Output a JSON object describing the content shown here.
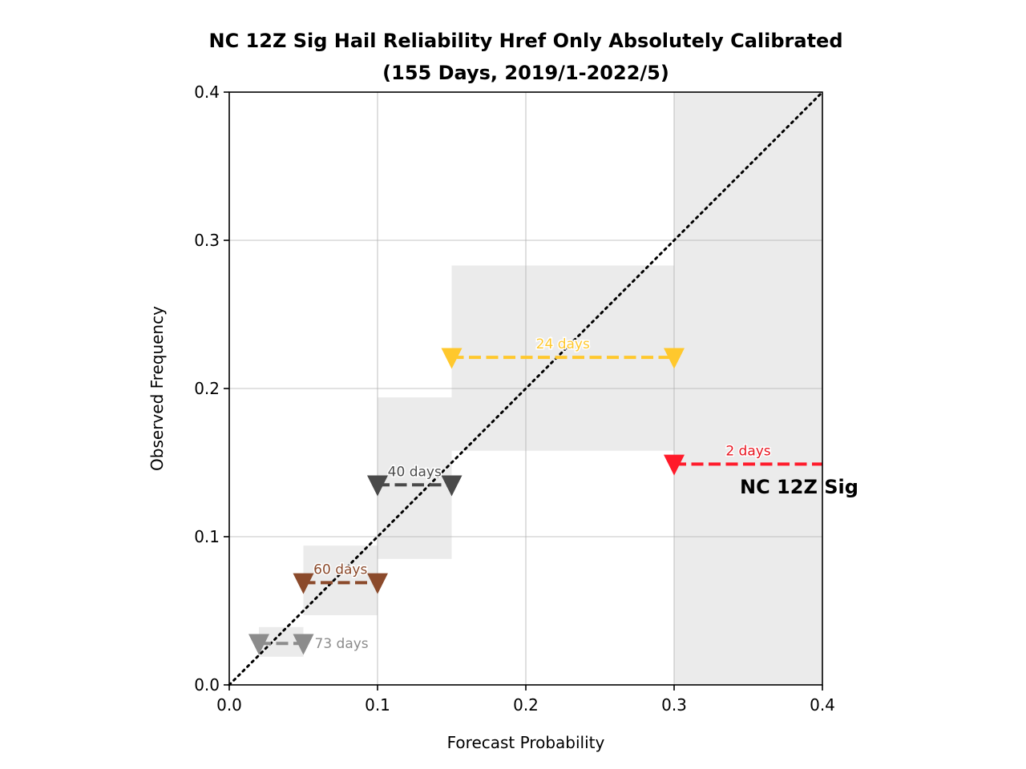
{
  "chart_data": {
    "type": "line",
    "title_line1": "NC 12Z Sig Hail Reliability Href Only Absolutely Calibrated",
    "title_line2": "(155 Days, 2019/1-2022/5)",
    "xlabel": "Forecast Probability",
    "ylabel": "Observed Frequency",
    "xlim": [
      0.0,
      0.4
    ],
    "ylim": [
      0.0,
      0.4
    ],
    "xticks": [
      "0.0",
      "0.1",
      "0.2",
      "0.3",
      "0.4"
    ],
    "yticks": [
      "0.0",
      "0.1",
      "0.2",
      "0.3",
      "0.4"
    ],
    "grid": true,
    "diagonal": {
      "from": [
        0,
        0
      ],
      "to": [
        0.4,
        0.4
      ],
      "style": "dotted",
      "color": "#000000"
    },
    "region_label": "NC 12Z Sig",
    "bins": [
      {
        "x_start": 0.02,
        "x_end": 0.05,
        "observed": 0.028,
        "conf_low": 0.019,
        "conf_high": 0.039,
        "label": "73 days",
        "label_anchor": "right",
        "color": "#8c8c8c",
        "label_color": "#8c8c8c"
      },
      {
        "x_start": 0.05,
        "x_end": 0.1,
        "observed": 0.069,
        "conf_low": 0.047,
        "conf_high": 0.094,
        "label": "60 days",
        "label_anchor": "above",
        "color": "#8b4a2b",
        "label_color": "#8b4a2b"
      },
      {
        "x_start": 0.1,
        "x_end": 0.15,
        "observed": 0.135,
        "conf_low": 0.085,
        "conf_high": 0.194,
        "label": "40 days",
        "label_anchor": "above",
        "color": "#4a4a4a",
        "label_color": "#4a4a4a"
      },
      {
        "x_start": 0.15,
        "x_end": 0.3,
        "observed": 0.221,
        "conf_low": 0.158,
        "conf_high": 0.283,
        "label": "24 days",
        "label_anchor": "above",
        "color": "#ffc82d",
        "label_color": "#ffc82d"
      },
      {
        "x_start": 0.3,
        "x_end": 0.4,
        "observed": 0.149,
        "conf_low": 0.0,
        "conf_high": 0.4,
        "label": "2 days",
        "label_anchor": "above",
        "color": "#ff1a2a",
        "label_color": "#e8141f",
        "open_right": true
      }
    ]
  }
}
